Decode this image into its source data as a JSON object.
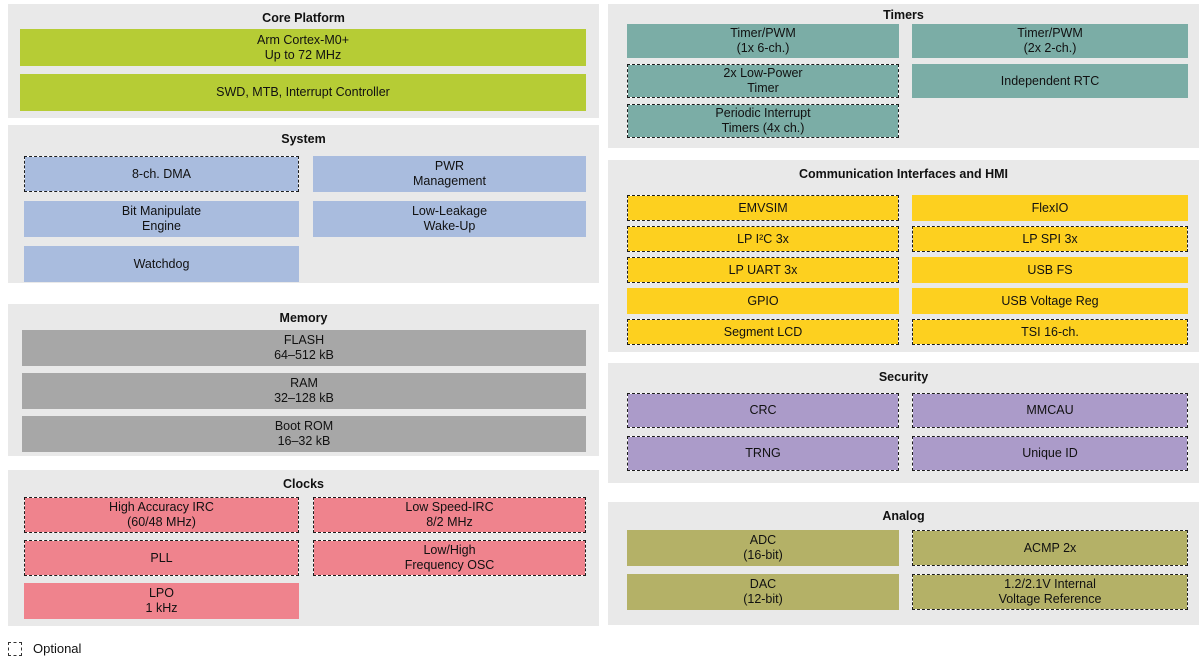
{
  "legend": {
    "label": "Optional"
  },
  "colors": {
    "panel_bg": "#e9e9e9",
    "core_green": "#b6cc35",
    "system_blue": "#a9bcde",
    "memory_gray": "#a7a7a7",
    "clocks_pink": "#ef838d",
    "timers_teal": "#7bada6",
    "comm_yellow": "#fdd01f",
    "security_purple": "#ab9bc9",
    "analog_olive": "#b4b167",
    "dashed_border": "#1c1c1c"
  },
  "sections": [
    {
      "id": "core",
      "column": "left",
      "title": "Core Platform",
      "color": "#b6cc35",
      "blocks": [
        {
          "label": "Arm Cortex-M0+\nUp to 72 MHz",
          "optional": false
        },
        {
          "label": "SWD, MTB, Interrupt Controller",
          "optional": false
        }
      ]
    },
    {
      "id": "system",
      "column": "left",
      "title": "System",
      "color": "#a9bcde",
      "blocks": [
        {
          "label": "8-ch. DMA",
          "optional": true
        },
        {
          "label": "PWR\nManagement",
          "optional": false
        },
        {
          "label": "Bit Manipulate\nEngine",
          "optional": false
        },
        {
          "label": "Low-Leakage\nWake-Up",
          "optional": false
        },
        {
          "label": "Watchdog",
          "optional": false
        }
      ]
    },
    {
      "id": "memory",
      "column": "left",
      "title": "Memory",
      "color": "#a7a7a7",
      "blocks": [
        {
          "label": "FLASH\n64–512 kB",
          "optional": false
        },
        {
          "label": "RAM\n32–128 kB",
          "optional": false
        },
        {
          "label": "Boot ROM\n16–32 kB",
          "optional": false
        }
      ]
    },
    {
      "id": "clocks",
      "column": "left",
      "title": "Clocks",
      "color": "#ef838d",
      "blocks": [
        {
          "label": "High Accuracy IRC\n(60/48 MHz)",
          "optional": true
        },
        {
          "label": "Low Speed-IRC\n8/2 MHz",
          "optional": true
        },
        {
          "label": "PLL",
          "optional": true
        },
        {
          "label": "Low/High\nFrequency OSC",
          "optional": true
        },
        {
          "label": "LPO\n1 kHz",
          "optional": false
        }
      ]
    },
    {
      "id": "timers",
      "column": "right",
      "title": "Timers",
      "color": "#7bada6",
      "blocks": [
        {
          "label": "Timer/PWM\n(1x 6-ch.)",
          "optional": false
        },
        {
          "label": "Timer/PWM\n(2x 2-ch.)",
          "optional": false
        },
        {
          "label": "2x Low-Power\nTimer",
          "optional": true
        },
        {
          "label": "Independent RTC",
          "optional": false
        },
        {
          "label": "Periodic Interrupt\nTimers (4x ch.)",
          "optional": true
        }
      ]
    },
    {
      "id": "comm",
      "column": "right",
      "title": "Communication Interfaces and HMI",
      "color": "#fdd01f",
      "blocks": [
        {
          "label": "EMVSIM",
          "optional": true
        },
        {
          "label": "FlexIO",
          "optional": false
        },
        {
          "label": "LP I²C 3x",
          "optional": true
        },
        {
          "label": "LP SPI 3x",
          "optional": true
        },
        {
          "label": "LP UART 3x",
          "optional": true
        },
        {
          "label": "USB FS",
          "optional": false
        },
        {
          "label": "GPIO",
          "optional": false
        },
        {
          "label": "USB Voltage Reg",
          "optional": false
        },
        {
          "label": "Segment LCD",
          "optional": true
        },
        {
          "label": "TSI 16-ch.",
          "optional": true
        }
      ]
    },
    {
      "id": "security",
      "column": "right",
      "title": "Security",
      "color": "#ab9bc9",
      "blocks": [
        {
          "label": "CRC",
          "optional": true
        },
        {
          "label": "MMCAU",
          "optional": true
        },
        {
          "label": "TRNG",
          "optional": true
        },
        {
          "label": "Unique ID",
          "optional": true
        }
      ]
    },
    {
      "id": "analog",
      "column": "right",
      "title": "Analog",
      "color": "#b4b167",
      "blocks": [
        {
          "label": "ADC\n(16-bit)",
          "optional": false
        },
        {
          "label": "ACMP 2x",
          "optional": true
        },
        {
          "label": "DAC\n(12-bit)",
          "optional": false
        },
        {
          "label": "1.2/2.1V Internal\nVoltage Reference",
          "optional": true
        }
      ]
    }
  ]
}
